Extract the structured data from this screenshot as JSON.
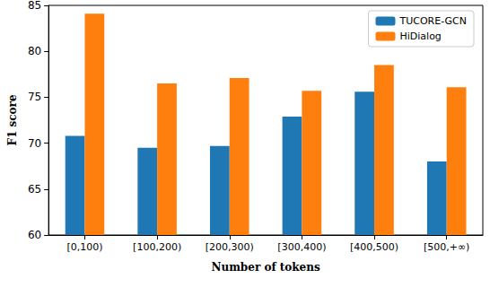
{
  "chart_data": {
    "type": "bar",
    "x_label": "Number of tokens",
    "y_label": "F1 score",
    "categories": [
      "[0,100)",
      "[100,200)",
      "[200,300)",
      "[300,400)",
      "[400,500)",
      "[500,+∞)"
    ],
    "series": [
      {
        "name": "TUCORE-GCN",
        "color": "#1f77b4",
        "values": [
          70.8,
          69.5,
          69.7,
          72.9,
          75.6,
          68.0
        ]
      },
      {
        "name": "HiDialog",
        "color": "#ff7f0e",
        "values": [
          84.1,
          76.5,
          77.1,
          75.7,
          78.5,
          76.1
        ]
      }
    ],
    "ylim": [
      60,
      85
    ],
    "yticks": [
      60,
      65,
      70,
      75,
      80,
      85
    ],
    "grid": false,
    "legend": "upper right"
  }
}
